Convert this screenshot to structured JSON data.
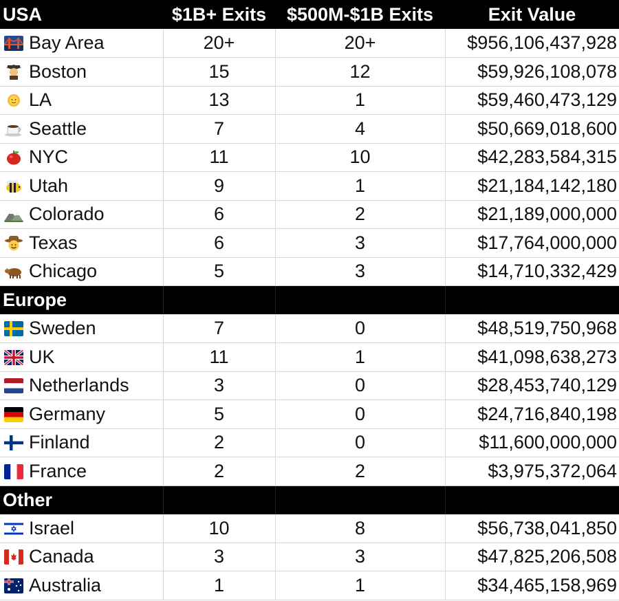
{
  "table": {
    "headers": [
      "USA",
      "$1B+ Exits",
      "$500M-$1B Exits",
      "Exit Value"
    ],
    "usa_rows": [
      {
        "icon": "golden-gate-bridge-icon",
        "name": "Bay Area",
        "big": "20+",
        "mid": "20+",
        "value": "$956,106,437,928"
      },
      {
        "icon": "graduate-icon",
        "name": "Boston",
        "big": "15",
        "mid": "12",
        "value": "$59,926,108,078"
      },
      {
        "icon": "sun-icon",
        "name": "LA",
        "big": "13",
        "mid": "1",
        "value": "$59,460,473,129"
      },
      {
        "icon": "coffee-icon",
        "name": "Seattle",
        "big": "7",
        "mid": "4",
        "value": "$50,669,018,600"
      },
      {
        "icon": "apple-icon",
        "name": "NYC",
        "big": "11",
        "mid": "10",
        "value": "$42,283,584,315"
      },
      {
        "icon": "bee-icon",
        "name": "Utah",
        "big": "9",
        "mid": "1",
        "value": "$21,184,142,180"
      },
      {
        "icon": "mountain-icon",
        "name": "Colorado",
        "big": "6",
        "mid": "2",
        "value": "$21,189,000,000"
      },
      {
        "icon": "cowboy-icon",
        "name": "Texas",
        "big": "6",
        "mid": "3",
        "value": "$17,764,000,000"
      },
      {
        "icon": "ox-icon",
        "name": "Chicago",
        "big": "5",
        "mid": "3",
        "value": "$14,710,332,429"
      }
    ],
    "europe_label": "Europe",
    "europe_rows": [
      {
        "icon": "sweden-flag-icon",
        "name": "Sweden",
        "big": "7",
        "mid": "0",
        "value": "$48,519,750,968"
      },
      {
        "icon": "uk-flag-icon",
        "name": "UK",
        "big": "11",
        "mid": "1",
        "value": "$41,098,638,273"
      },
      {
        "icon": "netherlands-flag-icon",
        "name": "Netherlands",
        "big": "3",
        "mid": "0",
        "value": "$28,453,740,129"
      },
      {
        "icon": "germany-flag-icon",
        "name": "Germany",
        "big": "5",
        "mid": "0",
        "value": "$24,716,840,198"
      },
      {
        "icon": "finland-flag-icon",
        "name": "Finland",
        "big": "2",
        "mid": "0",
        "value": "$11,600,000,000"
      },
      {
        "icon": "france-flag-icon",
        "name": "France",
        "big": "2",
        "mid": "2",
        "value": "$3,975,372,064"
      }
    ],
    "other_label": "Other",
    "other_rows": [
      {
        "icon": "israel-flag-icon",
        "name": "Israel",
        "big": "10",
        "mid": "8",
        "value": "$56,738,041,850"
      },
      {
        "icon": "canada-flag-icon",
        "name": "Canada",
        "big": "3",
        "mid": "3",
        "value": "$47,825,206,508"
      },
      {
        "icon": "australia-flag-icon",
        "name": "Australia",
        "big": "1",
        "mid": "1",
        "value": "$34,465,158,969"
      }
    ]
  }
}
